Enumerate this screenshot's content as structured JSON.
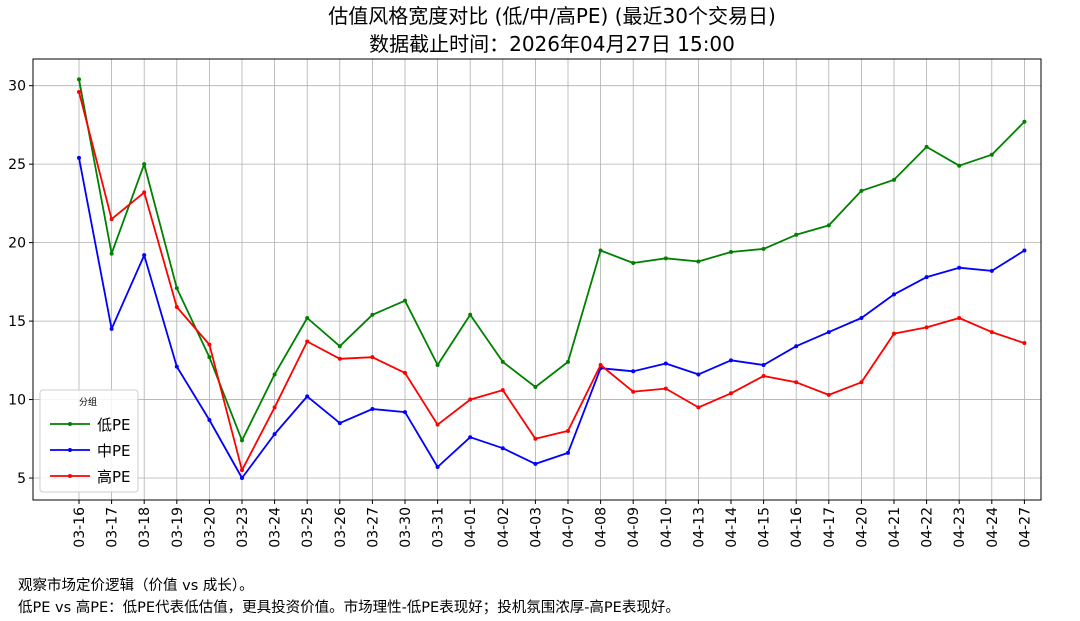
{
  "chart_data": {
    "type": "line",
    "title_line1": "估值风格宽度对比 (低/中/高PE) (最近30个交易日)",
    "title_line2": "数据截止时间：2026年04月27日 15:00",
    "categories": [
      "03-16",
      "03-17",
      "03-18",
      "03-19",
      "03-20",
      "03-23",
      "03-24",
      "03-25",
      "03-26",
      "03-27",
      "03-30",
      "03-31",
      "04-01",
      "04-02",
      "04-03",
      "04-07",
      "04-08",
      "04-09",
      "04-10",
      "04-13",
      "04-14",
      "04-15",
      "04-16",
      "04-17",
      "04-20",
      "04-21",
      "04-22",
      "04-23",
      "04-24",
      "04-27"
    ],
    "ylim": [
      3.6,
      31.7
    ],
    "yticks": [
      5,
      10,
      15,
      20,
      25,
      30
    ],
    "grid": true,
    "legend": {
      "title": "分组",
      "position": "lower-left"
    },
    "series": [
      {
        "name": "低PE",
        "color": "#008000",
        "values": [
          30.4,
          19.3,
          25.0,
          17.1,
          12.7,
          7.4,
          11.6,
          15.2,
          13.4,
          15.4,
          16.3,
          12.2,
          15.4,
          12.4,
          10.8,
          12.4,
          19.5,
          18.7,
          19.0,
          18.8,
          19.4,
          19.6,
          20.5,
          21.1,
          23.3,
          24.0,
          26.1,
          24.9,
          25.6,
          27.7
        ]
      },
      {
        "name": "中PE",
        "color": "#0000ff",
        "values": [
          25.4,
          14.5,
          19.2,
          12.1,
          8.7,
          5.0,
          7.8,
          10.2,
          8.5,
          9.4,
          9.2,
          5.7,
          7.6,
          6.9,
          5.9,
          6.6,
          12.0,
          11.8,
          12.3,
          11.6,
          12.5,
          12.2,
          13.4,
          14.3,
          15.2,
          16.7,
          17.8,
          18.4,
          18.2,
          19.5
        ]
      },
      {
        "name": "高PE",
        "color": "#ff0000",
        "values": [
          29.6,
          21.5,
          23.2,
          15.9,
          13.5,
          5.5,
          9.5,
          13.7,
          12.6,
          12.7,
          11.7,
          8.4,
          10.0,
          10.6,
          7.5,
          8.0,
          12.2,
          10.5,
          10.7,
          9.5,
          10.4,
          11.5,
          11.1,
          10.3,
          11.1,
          14.2,
          14.6,
          15.2,
          14.3,
          13.6
        ]
      }
    ]
  },
  "notes": {
    "line1": "观察市场定价逻辑（价值 vs 成长）。",
    "line2": "低PE vs 高PE：低PE代表低估值，更具投资价值。市场理性-低PE表现好；投机氛围浓厚-高PE表现好。"
  }
}
